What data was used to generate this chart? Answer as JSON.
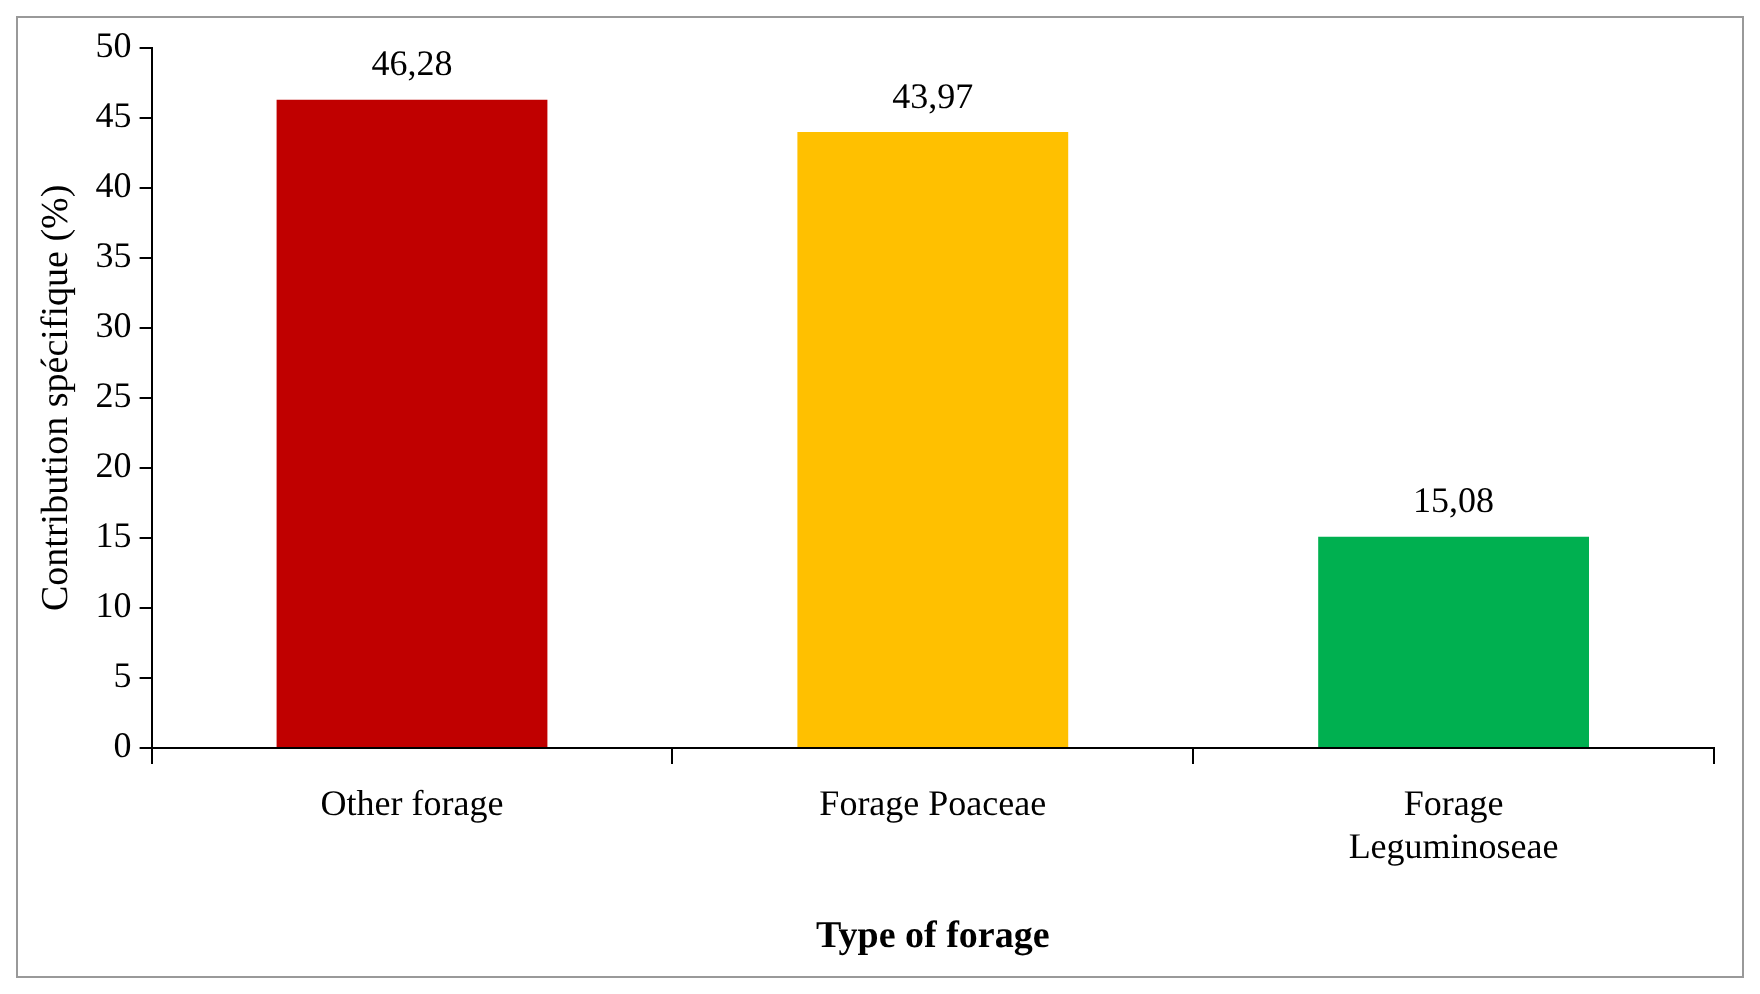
{
  "chart_data": {
    "type": "bar",
    "categories": [
      "Other forage",
      "Forage Poaceae",
      "Forage Leguminoseae"
    ],
    "values": [
      46.28,
      43.97,
      15.08
    ],
    "colors": [
      "#c00000",
      "#ffc000",
      "#00b050"
    ],
    "value_labels": [
      "46,28",
      "43,97",
      "15,08"
    ],
    "xlabel": "Type of forage",
    "ylabel": "Contribution spécifique (%)",
    "ylim": [
      0,
      50
    ],
    "yticks": [
      0,
      5,
      10,
      15,
      20,
      25,
      30,
      35,
      40,
      45,
      50
    ],
    "grid": false,
    "legend": false
  }
}
